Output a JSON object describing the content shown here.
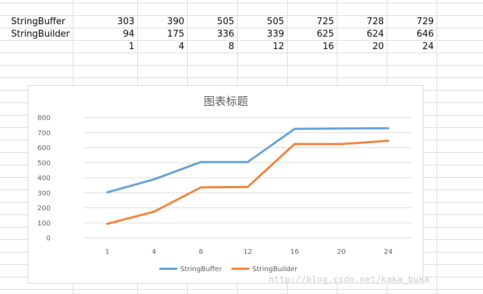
{
  "sheet": {
    "rows": [
      {
        "label": "StringBuffer",
        "values": [
          "303",
          "390",
          "505",
          "505",
          "725",
          "728",
          "729"
        ]
      },
      {
        "label": "StringBuilder",
        "values": [
          "94",
          "175",
          "336",
          "339",
          "625",
          "624",
          "646"
        ]
      },
      {
        "label": "",
        "values": [
          "1",
          "4",
          "8",
          "12",
          "16",
          "20",
          "24"
        ]
      }
    ]
  },
  "chart_data": {
    "type": "line",
    "title": "图表标题",
    "categories": [
      "1",
      "4",
      "8",
      "12",
      "16",
      "20",
      "24"
    ],
    "series": [
      {
        "name": "StringBuffer",
        "values": [
          303,
          390,
          505,
          505,
          725,
          728,
          729
        ],
        "color": "#5b9bd5"
      },
      {
        "name": "StringBuilder",
        "values": [
          94,
          175,
          336,
          339,
          625,
          624,
          646
        ],
        "color": "#ed7d31"
      }
    ],
    "yticks": [
      0,
      100,
      200,
      300,
      400,
      500,
      600,
      700,
      800
    ],
    "ylim": [
      0,
      800
    ],
    "grid": true,
    "legend_position": "bottom"
  },
  "watermark": "http://blog.csdn.net/kaka_buka"
}
